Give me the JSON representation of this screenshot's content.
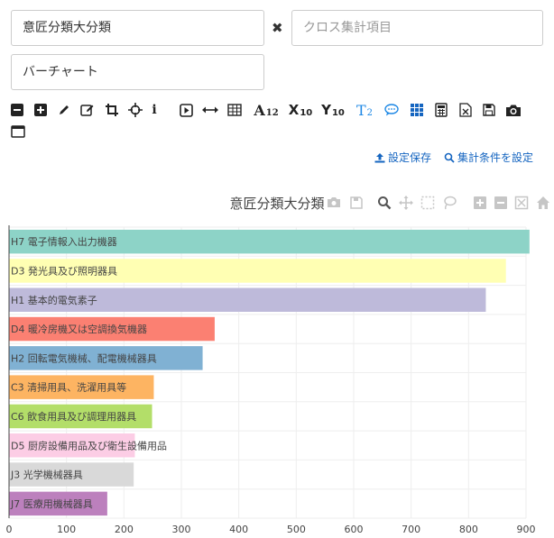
{
  "controls": {
    "axis_value": "意匠分類大分類",
    "cross_placeholder": "クロス集計項目",
    "chart_type_value": "バーチャート",
    "clear_symbol": "✖"
  },
  "toolbar": {
    "x_label": "X",
    "x_sub": "10",
    "y_label": "Y",
    "y_sub": "10",
    "font_label": "A",
    "font_sub": "12",
    "t_label": "T",
    "t_sub": "2",
    "info_label": "i"
  },
  "links": {
    "save_settings": "設定保存",
    "set_conditions": "集計条件を設定"
  },
  "chart_data": {
    "type": "bar",
    "orientation": "horizontal",
    "title": "意匠分類大分類",
    "xlabel": "",
    "ylabel": "",
    "xlim": [
      0,
      900
    ],
    "xticks": [
      0,
      100,
      200,
      300,
      400,
      500,
      600,
      700,
      800,
      900
    ],
    "grid": true,
    "categories": [
      "H7 電子情報入出力機器",
      "D3 発光具及び照明器具",
      "H1 基本的電気素子",
      "D4 暖冷房機又は空調換気機器",
      "H2 回転電気機械、配電機械器具",
      "C3 清掃用具、洗濯用具等",
      "C6 飲食用具及び調理用器具",
      "D5 厨房設備用品及び衛生設備用品",
      "J3 光学機械器具",
      "J7 医療用機械器具"
    ],
    "values": [
      906,
      865,
      830,
      358,
      337,
      252,
      249,
      219,
      217,
      171
    ],
    "colors": [
      "#8dd3c7",
      "#ffffb3",
      "#bebada",
      "#fb8072",
      "#80b1d3",
      "#fdb462",
      "#b3de69",
      "#fccde5",
      "#d9d9d9",
      "#bc80bd"
    ]
  }
}
